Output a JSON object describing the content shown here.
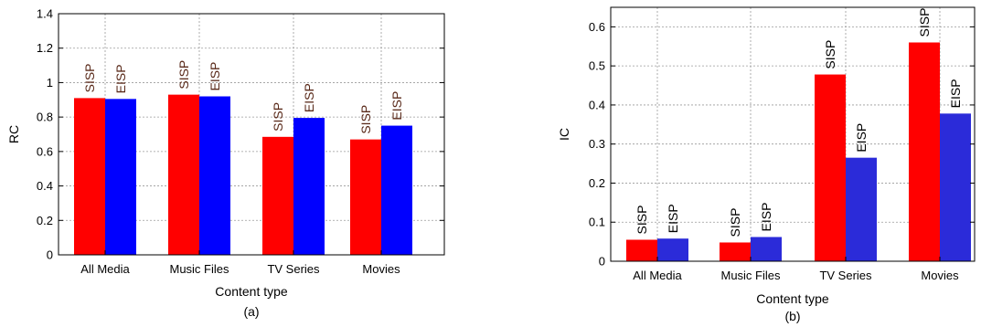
{
  "chart_data": [
    {
      "type": "bar",
      "caption": "(a)",
      "xlabel": "Content type",
      "ylabel": "RC",
      "ylim": [
        0,
        1.4
      ],
      "yticks": [
        "0",
        "0.2",
        "0.4",
        "0.6",
        "0.8",
        "1",
        "1.2",
        "1.4"
      ],
      "categories": [
        "All Media",
        "Music Files",
        "TV Series",
        "Movies"
      ],
      "grid": true,
      "series": [
        {
          "name": "SISP",
          "color": "#ff0000",
          "values": [
            0.91,
            0.93,
            0.685,
            0.67
          ]
        },
        {
          "name": "EISP",
          "color": "#0000ff",
          "values": [
            0.905,
            0.92,
            0.795,
            0.75
          ]
        }
      ],
      "bar_label_color": "#5a2a1a"
    },
    {
      "type": "bar",
      "caption": "(b)",
      "xlabel": "Content type",
      "ylabel": "IC",
      "ylim": [
        0,
        0.65
      ],
      "yticks": [
        "0",
        "0.1",
        "0.2",
        "0.3",
        "0.4",
        "0.5",
        "0.6"
      ],
      "categories": [
        "All Media",
        "Music Files",
        "TV Series",
        "Movies"
      ],
      "grid": true,
      "series": [
        {
          "name": "SISP",
          "color": "#ff0000",
          "values": [
            0.055,
            0.048,
            0.478,
            0.56
          ]
        },
        {
          "name": "EISP",
          "color": "#2b2bd9",
          "values": [
            0.058,
            0.062,
            0.265,
            0.378
          ]
        }
      ],
      "bar_label_color": "#000000"
    }
  ]
}
